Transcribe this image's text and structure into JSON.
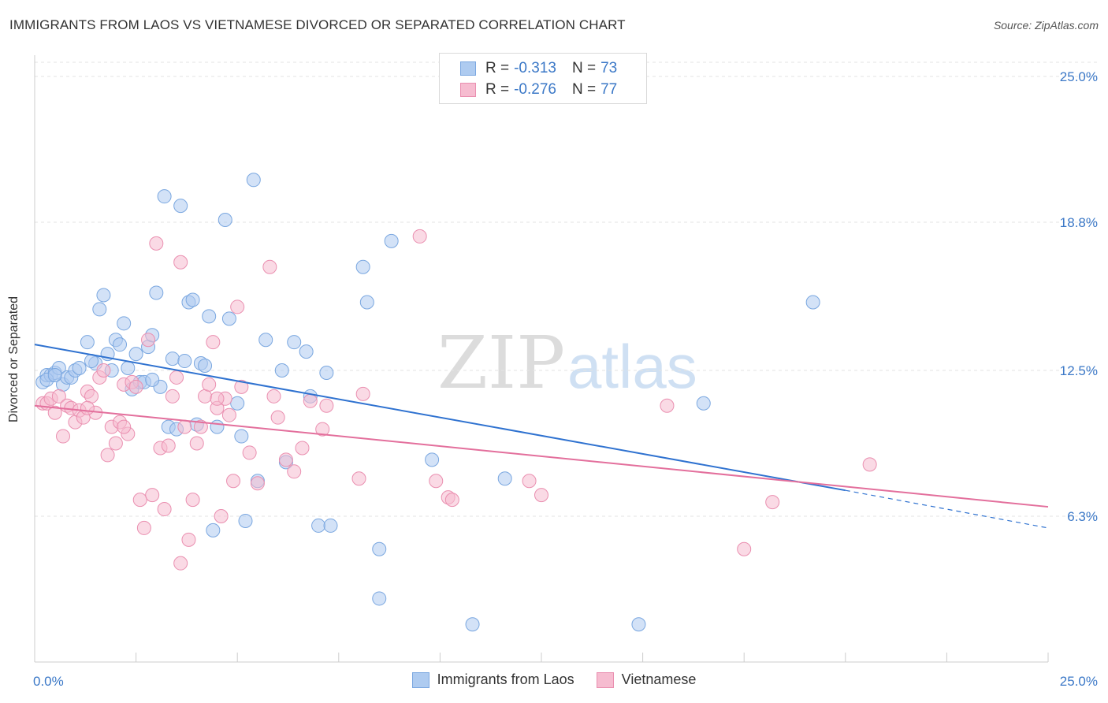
{
  "title": "IMMIGRANTS FROM LAOS VS VIETNAMESE DIVORCED OR SEPARATED CORRELATION CHART",
  "source": "Source: ZipAtlas.com",
  "watermark": {
    "zip": "ZIP",
    "atlas": "atlas"
  },
  "legend": {
    "r_label": "R =",
    "n_label": "N =",
    "items": [
      {
        "r": "-0.313",
        "n": "73"
      },
      {
        "r": "-0.276",
        "n": "77"
      }
    ]
  },
  "colors": {
    "blue_fill": "#aecbf0",
    "blue_stroke": "#7aa7e0",
    "blue_line": "#2f72d0",
    "pink_fill": "#f6bcd0",
    "pink_stroke": "#ea8fb0",
    "pink_line": "#e36f9c",
    "tick_label": "#3b78c7"
  },
  "chart_data": {
    "type": "scatter",
    "title": "IMMIGRANTS FROM LAOS VS VIETNAMESE DIVORCED OR SEPARATED CORRELATION CHART",
    "xlabel": "",
    "ylabel": "Divorced or Separated",
    "xlim": [
      0,
      25
    ],
    "ylim": [
      0,
      25.8
    ],
    "x_tick_labels": [
      "0.0%",
      "25.0%"
    ],
    "y_ticks": [
      {
        "value": 6.3,
        "label": "6.3%"
      },
      {
        "value": 12.5,
        "label": "12.5%"
      },
      {
        "value": 18.8,
        "label": "18.8%"
      },
      {
        "value": 25.0,
        "label": "25.0%"
      }
    ],
    "grid": "horizontal dashed",
    "legend_placement": "top-center",
    "series": [
      {
        "name": "Immigrants from Laos",
        "color": "#aecbf0",
        "trend": {
          "x0": 0,
          "y0": 13.6,
          "x1": 20,
          "y1": 7.4,
          "dashed_to_x": 25,
          "dashed_to_y": 5.8
        },
        "points": [
          [
            0.2,
            12.0
          ],
          [
            0.3,
            12.3
          ],
          [
            0.4,
            12.3
          ],
          [
            0.5,
            12.4
          ],
          [
            0.6,
            12.6
          ],
          [
            0.7,
            11.9
          ],
          [
            0.8,
            12.2
          ],
          [
            0.9,
            12.2
          ],
          [
            1.0,
            12.5
          ],
          [
            1.1,
            12.6
          ],
          [
            1.3,
            13.7
          ],
          [
            1.5,
            12.8
          ],
          [
            1.6,
            15.1
          ],
          [
            1.7,
            15.7
          ],
          [
            1.8,
            13.2
          ],
          [
            1.9,
            12.5
          ],
          [
            2.0,
            13.8
          ],
          [
            2.1,
            13.6
          ],
          [
            2.2,
            14.5
          ],
          [
            2.3,
            12.6
          ],
          [
            2.4,
            11.7
          ],
          [
            2.5,
            13.2
          ],
          [
            2.6,
            12.0
          ],
          [
            2.7,
            12.0
          ],
          [
            2.8,
            13.5
          ],
          [
            2.9,
            14.0
          ],
          [
            3.0,
            15.8
          ],
          [
            3.1,
            11.8
          ],
          [
            3.2,
            19.9
          ],
          [
            3.3,
            10.1
          ],
          [
            3.4,
            13.0
          ],
          [
            3.5,
            10.0
          ],
          [
            3.6,
            19.5
          ],
          [
            3.7,
            12.9
          ],
          [
            3.8,
            15.4
          ],
          [
            3.9,
            15.5
          ],
          [
            4.0,
            10.2
          ],
          [
            4.1,
            12.8
          ],
          [
            4.2,
            12.7
          ],
          [
            4.3,
            14.8
          ],
          [
            4.4,
            5.7
          ],
          [
            4.5,
            10.1
          ],
          [
            4.7,
            18.9
          ],
          [
            4.8,
            14.7
          ],
          [
            5.0,
            11.1
          ],
          [
            5.1,
            9.7
          ],
          [
            5.2,
            6.1
          ],
          [
            5.4,
            20.6
          ],
          [
            5.5,
            7.8
          ],
          [
            5.7,
            13.8
          ],
          [
            6.1,
            12.5
          ],
          [
            6.2,
            8.6
          ],
          [
            6.4,
            13.7
          ],
          [
            6.7,
            13.3
          ],
          [
            6.8,
            11.4
          ],
          [
            7.0,
            5.9
          ],
          [
            7.2,
            12.4
          ],
          [
            7.3,
            5.9
          ],
          [
            8.1,
            16.9
          ],
          [
            8.2,
            15.4
          ],
          [
            8.5,
            4.9
          ],
          [
            8.5,
            2.8
          ],
          [
            8.8,
            18.0
          ],
          [
            9.8,
            8.7
          ],
          [
            10.8,
            1.7
          ],
          [
            11.6,
            7.9
          ],
          [
            14.9,
            1.7
          ],
          [
            16.5,
            11.1
          ],
          [
            19.2,
            15.4
          ],
          [
            0.3,
            12.1
          ],
          [
            0.5,
            12.3
          ],
          [
            1.4,
            12.9
          ],
          [
            2.9,
            12.1
          ]
        ]
      },
      {
        "name": "Vietnamese",
        "color": "#f6bcd0",
        "trend": {
          "x0": 0,
          "y0": 11.0,
          "x1": 25,
          "y1": 6.7
        },
        "points": [
          [
            0.2,
            11.1
          ],
          [
            0.3,
            11.1
          ],
          [
            0.4,
            11.3
          ],
          [
            0.5,
            10.7
          ],
          [
            0.6,
            11.4
          ],
          [
            0.7,
            9.7
          ],
          [
            0.8,
            11.0
          ],
          [
            0.9,
            10.9
          ],
          [
            1.0,
            10.3
          ],
          [
            1.1,
            10.8
          ],
          [
            1.2,
            10.5
          ],
          [
            1.3,
            11.6
          ],
          [
            1.4,
            11.4
          ],
          [
            1.5,
            10.7
          ],
          [
            1.6,
            12.2
          ],
          [
            1.7,
            12.5
          ],
          [
            1.8,
            8.9
          ],
          [
            1.9,
            10.1
          ],
          [
            2.0,
            9.4
          ],
          [
            2.1,
            10.3
          ],
          [
            2.2,
            11.9
          ],
          [
            2.3,
            9.8
          ],
          [
            2.4,
            12.0
          ],
          [
            2.5,
            11.8
          ],
          [
            2.6,
            7.0
          ],
          [
            2.7,
            5.8
          ],
          [
            2.8,
            13.8
          ],
          [
            2.9,
            7.2
          ],
          [
            3.0,
            17.9
          ],
          [
            3.1,
            9.2
          ],
          [
            3.2,
            6.6
          ],
          [
            3.3,
            9.3
          ],
          [
            3.4,
            11.4
          ],
          [
            3.5,
            12.2
          ],
          [
            3.6,
            17.1
          ],
          [
            3.7,
            10.1
          ],
          [
            3.8,
            5.3
          ],
          [
            3.9,
            7.0
          ],
          [
            4.0,
            9.4
          ],
          [
            4.1,
            10.1
          ],
          [
            4.2,
            11.4
          ],
          [
            4.3,
            11.9
          ],
          [
            4.4,
            13.7
          ],
          [
            4.5,
            10.9
          ],
          [
            4.6,
            6.3
          ],
          [
            4.7,
            11.3
          ],
          [
            4.8,
            10.6
          ],
          [
            4.9,
            7.8
          ],
          [
            5.0,
            15.2
          ],
          [
            5.1,
            11.8
          ],
          [
            5.3,
            9.0
          ],
          [
            5.5,
            7.7
          ],
          [
            5.8,
            16.9
          ],
          [
            5.9,
            11.4
          ],
          [
            6.0,
            10.5
          ],
          [
            6.2,
            8.7
          ],
          [
            6.4,
            8.2
          ],
          [
            6.6,
            9.2
          ],
          [
            6.8,
            11.2
          ],
          [
            7.1,
            10.0
          ],
          [
            7.2,
            11.0
          ],
          [
            8.0,
            7.9
          ],
          [
            8.1,
            11.5
          ],
          [
            9.5,
            18.2
          ],
          [
            9.9,
            7.8
          ],
          [
            10.2,
            7.1
          ],
          [
            10.3,
            7.0
          ],
          [
            12.2,
            7.8
          ],
          [
            12.5,
            7.2
          ],
          [
            15.6,
            11.0
          ],
          [
            17.5,
            4.9
          ],
          [
            18.2,
            6.9
          ],
          [
            20.6,
            8.5
          ],
          [
            3.6,
            4.3
          ],
          [
            1.3,
            10.9
          ],
          [
            2.2,
            10.1
          ],
          [
            4.5,
            11.3
          ]
        ]
      }
    ]
  }
}
